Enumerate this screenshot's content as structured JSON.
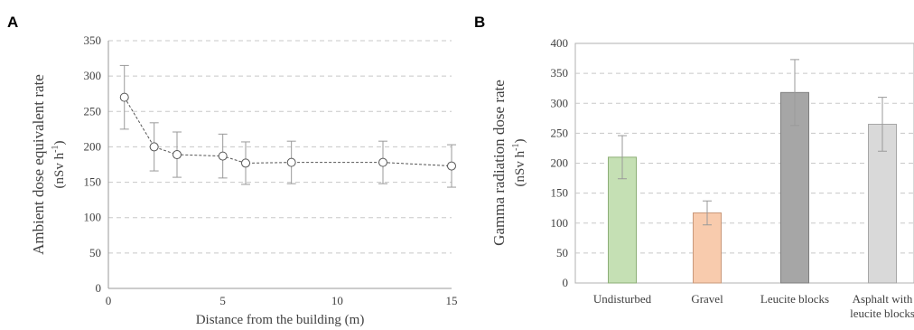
{
  "chart_data": [
    {
      "panel": "A",
      "type": "line",
      "title": "",
      "xlabel": "Distance from the building (m)",
      "ylabel_line1": "Ambient dose equivalent rate",
      "ylabel_line2": "(nSv h",
      "ylabel_sup": "-1",
      "ylabel_close": ")",
      "xlim": [
        0,
        15
      ],
      "ylim": [
        0,
        350
      ],
      "x_ticks": [
        0,
        5,
        10,
        15
      ],
      "y_ticks": [
        0,
        50,
        100,
        150,
        200,
        250,
        300,
        350
      ],
      "grid": true,
      "points": [
        {
          "x": 0.7,
          "y": 270,
          "err": 45
        },
        {
          "x": 2,
          "y": 200,
          "err": 34
        },
        {
          "x": 3,
          "y": 189,
          "err": 32
        },
        {
          "x": 5,
          "y": 187,
          "err": 31
        },
        {
          "x": 6,
          "y": 177,
          "err": 30
        },
        {
          "x": 8,
          "y": 178,
          "err": 30
        },
        {
          "x": 12,
          "y": 178,
          "err": 30
        },
        {
          "x": 15,
          "y": 173,
          "err": 30
        }
      ]
    },
    {
      "panel": "B",
      "type": "bar",
      "title": "",
      "xlabel": "",
      "ylabel_line1": "Gamma radiation dose rate",
      "ylabel_line2": "(nSv h",
      "ylabel_sup": "-1",
      "ylabel_close": ")",
      "ylim": [
        0,
        400
      ],
      "y_ticks": [
        0,
        50,
        100,
        150,
        200,
        250,
        300,
        350,
        400
      ],
      "grid": true,
      "bars": [
        {
          "label": [
            "Undisturbed"
          ],
          "value": 210,
          "err": 36,
          "color": "#c5e0b4",
          "stroke": "#8cae76"
        },
        {
          "label": [
            "Gravel"
          ],
          "value": 117,
          "err": 20,
          "color": "#f8cbad",
          "stroke": "#c9987a"
        },
        {
          "label": [
            "Leucite blocks"
          ],
          "value": 318,
          "err": 55,
          "color": "#a6a6a6",
          "stroke": "#7f7f7f"
        },
        {
          "label": [
            "Asphalt with",
            "leucite blocks"
          ],
          "value": 265,
          "err": 45,
          "color": "#d9d9d9",
          "stroke": "#a6a6a6"
        }
      ]
    }
  ]
}
